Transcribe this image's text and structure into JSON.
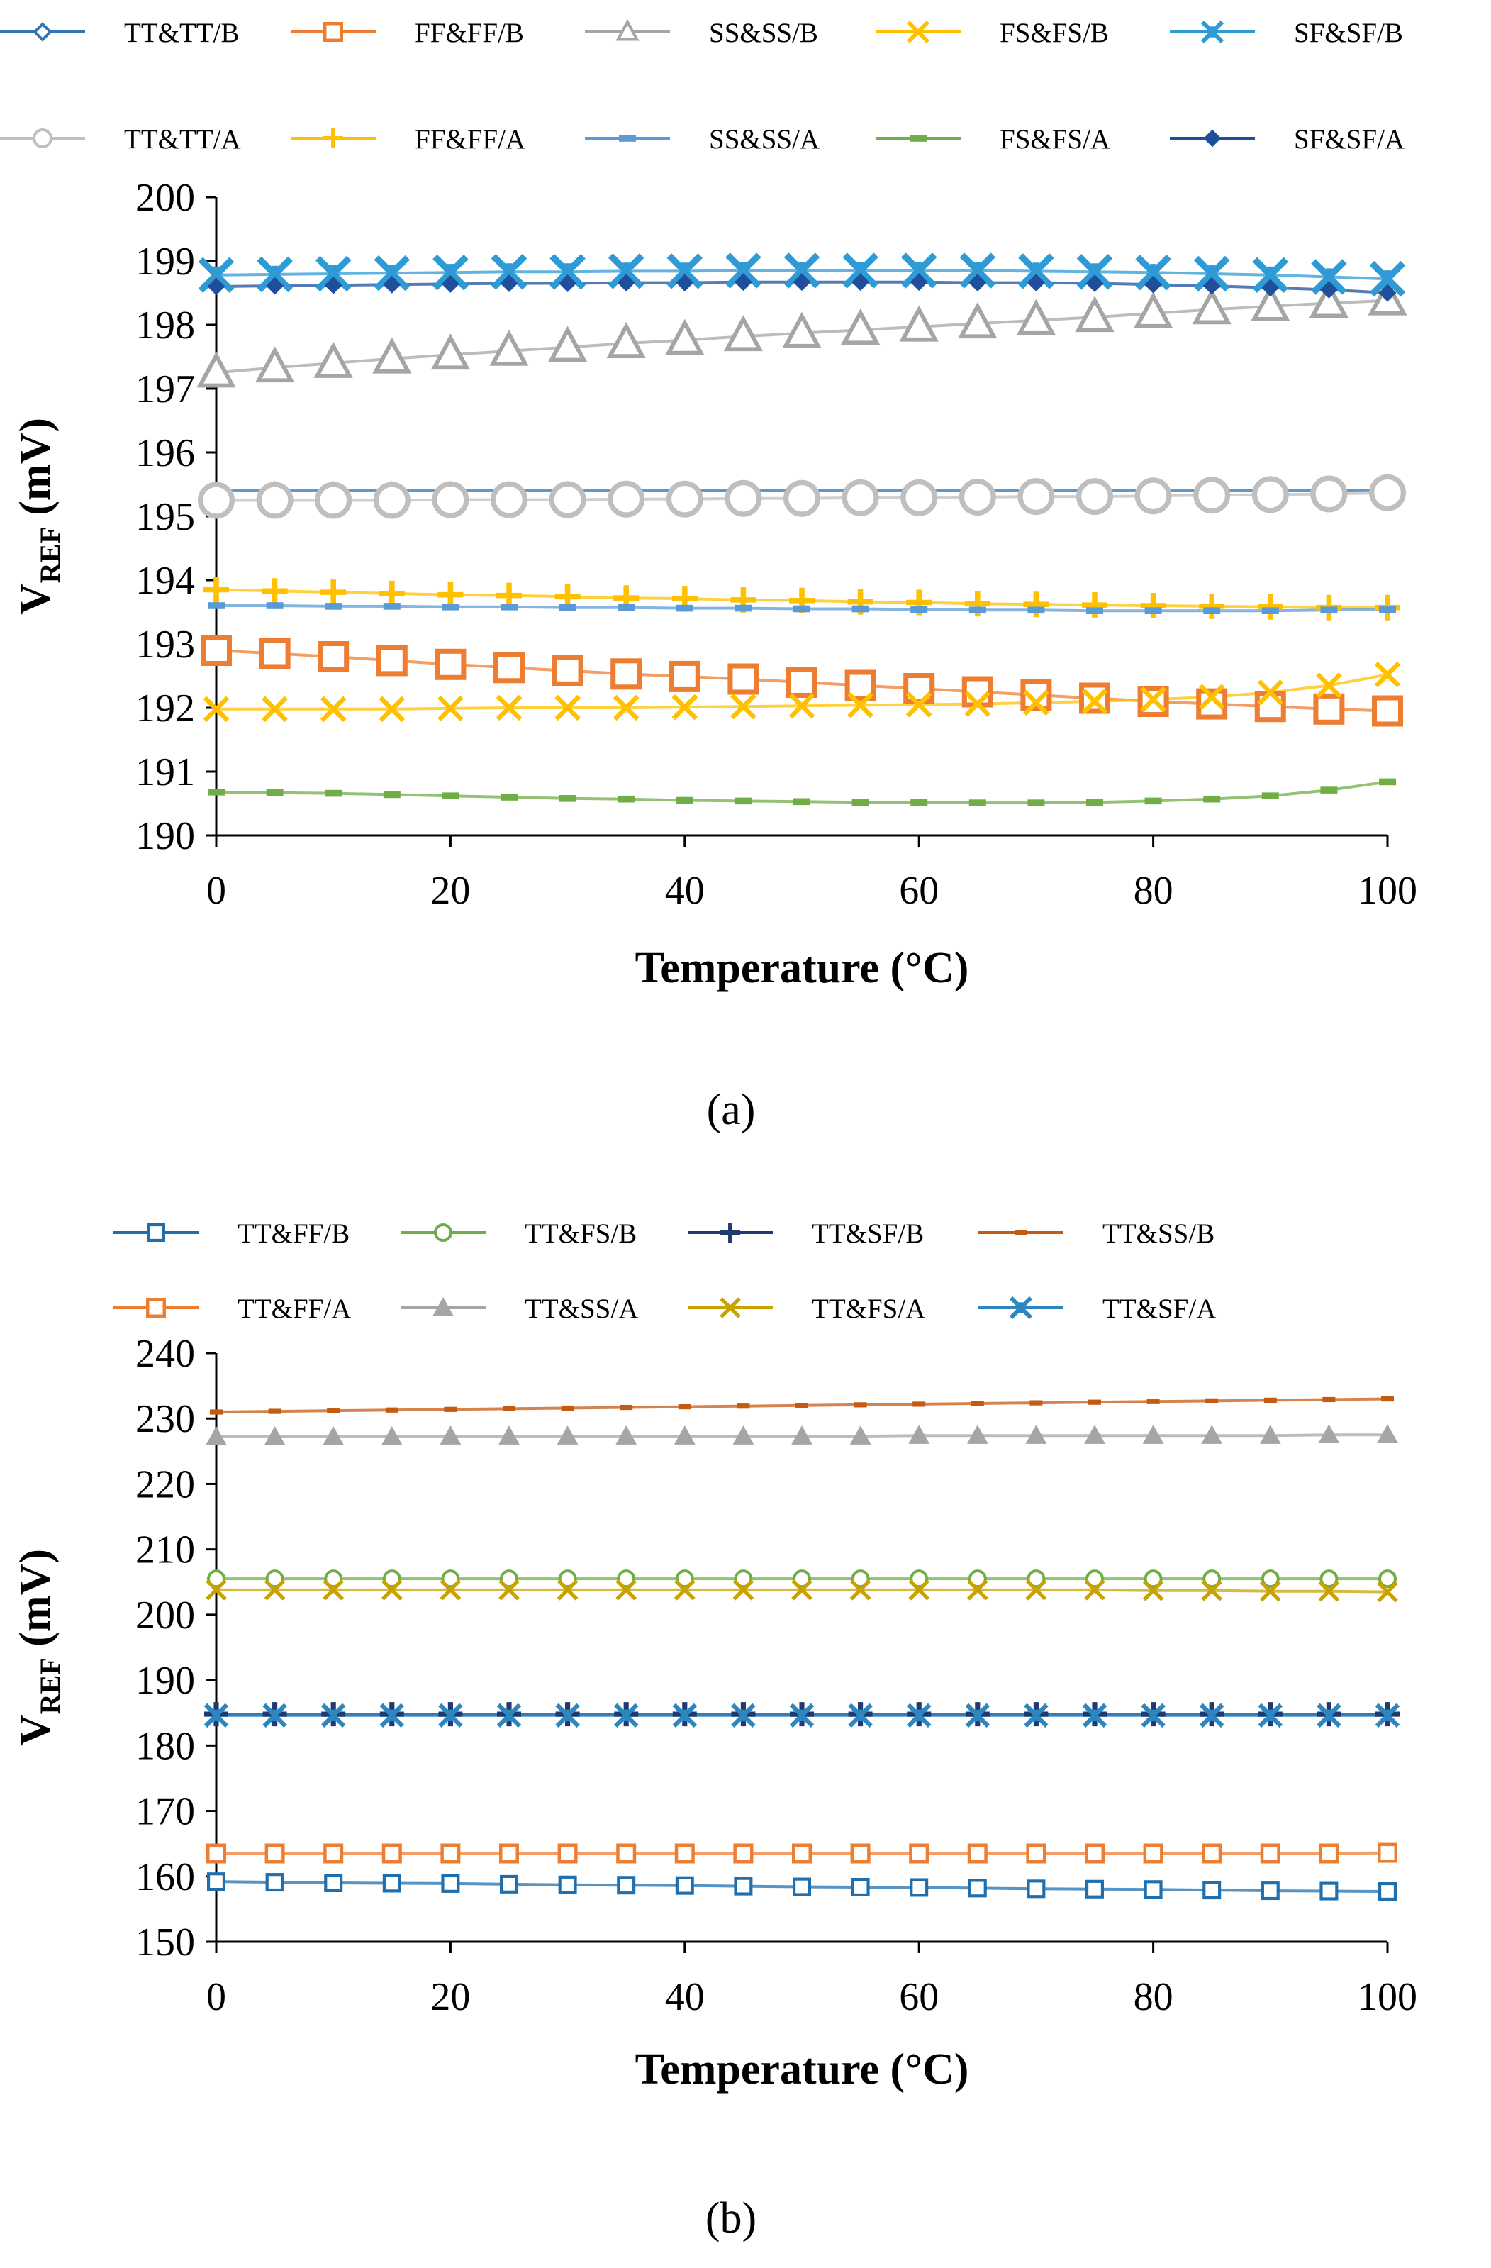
{
  "chart_data": [
    {
      "type": "line",
      "panel_label": "(a)",
      "xlabel": "Temperature (°C)",
      "ylabel_main": "V",
      "ylabel_sub": "REF",
      "ylabel_unit": " (mV)",
      "xlim": [
        0,
        100
      ],
      "ylim": [
        190,
        200
      ],
      "xticks": [
        "0",
        "20",
        "40",
        "60",
        "80",
        "100"
      ],
      "yticks": [
        "190",
        "191",
        "192",
        "193",
        "194",
        "195",
        "196",
        "197",
        "198",
        "199",
        "200"
      ],
      "legend_position": "top",
      "x": [
        0,
        5,
        10,
        15,
        20,
        25,
        30,
        35,
        40,
        45,
        50,
        55,
        60,
        65,
        70,
        75,
        80,
        85,
        90,
        95,
        100
      ],
      "series": [
        {
          "name": "TT&TT/B",
          "color": "#2E75B6",
          "marker": "diamond-open",
          "marker_size": 11,
          "values": [
            195.4,
            195.4,
            195.4,
            195.4,
            195.4,
            195.4,
            195.4,
            195.4,
            195.4,
            195.4,
            195.4,
            195.4,
            195.4,
            195.4,
            195.4,
            195.4,
            195.4,
            195.4,
            195.4,
            195.4,
            195.4
          ]
        },
        {
          "name": "FF&FF/B",
          "color": "#ED7D31",
          "marker": "square-open",
          "marker_size": 22,
          "values": [
            192.9,
            192.85,
            192.8,
            192.74,
            192.68,
            192.63,
            192.58,
            192.53,
            192.49,
            192.45,
            192.4,
            192.35,
            192.3,
            192.25,
            192.2,
            192.15,
            192.1,
            192.06,
            192.02,
            191.98,
            191.95
          ]
        },
        {
          "name": "SS&SS/B",
          "color": "#A5A5A5",
          "marker": "triangle-open",
          "marker_size": 24,
          "values": [
            197.25,
            197.33,
            197.4,
            197.47,
            197.53,
            197.59,
            197.65,
            197.71,
            197.76,
            197.82,
            197.87,
            197.92,
            197.97,
            198.02,
            198.07,
            198.12,
            198.18,
            198.24,
            198.29,
            198.34,
            198.38
          ]
        },
        {
          "name": "FS&FS/B",
          "color": "#FFC000",
          "marker": "x",
          "marker_size": 16,
          "values": [
            191.98,
            191.98,
            191.98,
            191.98,
            191.99,
            192.0,
            192.0,
            192.0,
            192.01,
            192.02,
            192.03,
            192.04,
            192.05,
            192.06,
            192.08,
            192.1,
            192.13,
            192.17,
            192.24,
            192.35,
            192.52
          ]
        },
        {
          "name": "SF&SF/B",
          "color": "#2E9BD6",
          "marker": "star-x",
          "marker_size": 22,
          "values": [
            198.78,
            198.79,
            198.8,
            198.81,
            198.82,
            198.83,
            198.83,
            198.84,
            198.84,
            198.85,
            198.85,
            198.85,
            198.85,
            198.85,
            198.84,
            198.83,
            198.82,
            198.8,
            198.78,
            198.75,
            198.72
          ]
        },
        {
          "name": "TT&TT/A",
          "color": "#BFBFBF",
          "marker": "circle-open",
          "marker_size": 26,
          "values": [
            195.25,
            195.25,
            195.25,
            195.25,
            195.26,
            195.26,
            195.26,
            195.27,
            195.27,
            195.28,
            195.28,
            195.29,
            195.29,
            195.3,
            195.31,
            195.31,
            195.32,
            195.33,
            195.34,
            195.35,
            195.37
          ]
        },
        {
          "name": "FF&FF/A",
          "color": "#FFC000",
          "marker": "plus",
          "marker_size": 18,
          "values": [
            193.85,
            193.83,
            193.81,
            193.79,
            193.77,
            193.76,
            193.74,
            193.72,
            193.71,
            193.69,
            193.68,
            193.66,
            193.65,
            193.63,
            193.62,
            193.61,
            193.6,
            193.59,
            193.58,
            193.57,
            193.57
          ]
        },
        {
          "name": "SS&SS/A",
          "color": "#5B9BD5",
          "marker": "dash",
          "marker_size": 12,
          "values": [
            193.6,
            193.6,
            193.59,
            193.59,
            193.58,
            193.58,
            193.57,
            193.57,
            193.56,
            193.56,
            193.55,
            193.55,
            193.54,
            193.53,
            193.53,
            193.52,
            193.52,
            193.52,
            193.52,
            193.53,
            193.54
          ]
        },
        {
          "name": "FS&FS/A",
          "color": "#70AD47",
          "marker": "dash",
          "marker_size": 12,
          "values": [
            190.68,
            190.67,
            190.66,
            190.64,
            190.62,
            190.6,
            190.58,
            190.57,
            190.55,
            190.54,
            190.53,
            190.52,
            190.52,
            190.51,
            190.51,
            190.52,
            190.54,
            190.57,
            190.62,
            190.71,
            190.84
          ]
        },
        {
          "name": "SF&SF/A",
          "color": "#1F4E9B",
          "marker": "diamond",
          "marker_size": 11,
          "values": [
            198.6,
            198.61,
            198.62,
            198.63,
            198.64,
            198.65,
            198.65,
            198.66,
            198.66,
            198.67,
            198.67,
            198.67,
            198.67,
            198.66,
            198.66,
            198.65,
            198.63,
            198.61,
            198.58,
            198.55,
            198.5
          ]
        }
      ]
    },
    {
      "type": "line",
      "panel_label": "(b)",
      "xlabel": "Temperature (°C)",
      "ylabel_main": "V",
      "ylabel_sub": "REF",
      "ylabel_unit": " (mV)",
      "xlim": [
        0,
        100
      ],
      "ylim": [
        150,
        240
      ],
      "xticks": [
        "0",
        "20",
        "40",
        "60",
        "80",
        "100"
      ],
      "yticks": [
        "150",
        "160",
        "170",
        "180",
        "190",
        "200",
        "210",
        "220",
        "230",
        "240"
      ],
      "legend_position": "top",
      "x": [
        0,
        5,
        10,
        15,
        20,
        25,
        30,
        35,
        40,
        45,
        50,
        55,
        60,
        65,
        70,
        75,
        80,
        85,
        90,
        95,
        100
      ],
      "series": [
        {
          "name": "TT&FF/B",
          "color": "#1F6FAF",
          "marker": "square-open",
          "marker_size": 13,
          "values": [
            159.2,
            159.1,
            159.0,
            158.95,
            158.9,
            158.8,
            158.7,
            158.65,
            158.6,
            158.5,
            158.4,
            158.35,
            158.3,
            158.2,
            158.1,
            158.05,
            158.0,
            157.9,
            157.8,
            157.75,
            157.7
          ]
        },
        {
          "name": "TT&FS/B",
          "color": "#70AD47",
          "marker": "circle-open",
          "marker_size": 13,
          "values": [
            205.5,
            205.5,
            205.5,
            205.5,
            205.5,
            205.5,
            205.5,
            205.5,
            205.5,
            205.5,
            205.5,
            205.5,
            205.5,
            205.5,
            205.5,
            205.5,
            205.5,
            205.5,
            205.5,
            205.5,
            205.5
          ]
        },
        {
          "name": "TT&SF/B",
          "color": "#1F3A6E",
          "marker": "plus",
          "marker_size": 17,
          "values": [
            184.8,
            184.8,
            184.8,
            184.8,
            184.8,
            184.8,
            184.8,
            184.8,
            184.8,
            184.8,
            184.8,
            184.8,
            184.8,
            184.8,
            184.8,
            184.8,
            184.8,
            184.8,
            184.8,
            184.8,
            184.8
          ]
        },
        {
          "name": "TT&SS/B",
          "color": "#C55A11",
          "marker": "dash",
          "marker_size": 9,
          "values": [
            231.0,
            231.1,
            231.2,
            231.3,
            231.4,
            231.5,
            231.6,
            231.7,
            231.8,
            231.9,
            232.0,
            232.1,
            232.2,
            232.3,
            232.4,
            232.5,
            232.6,
            232.7,
            232.8,
            232.9,
            233.0
          ]
        },
        {
          "name": "TT&FF/A",
          "color": "#ED7D31",
          "marker": "square-open",
          "marker_size": 14,
          "values": [
            163.5,
            163.5,
            163.5,
            163.5,
            163.5,
            163.5,
            163.5,
            163.5,
            163.5,
            163.5,
            163.5,
            163.5,
            163.5,
            163.5,
            163.5,
            163.5,
            163.5,
            163.5,
            163.5,
            163.5,
            163.6
          ]
        },
        {
          "name": "TT&SS/A",
          "color": "#A5A5A5",
          "marker": "triangle",
          "marker_size": 14,
          "values": [
            227.2,
            227.2,
            227.2,
            227.2,
            227.3,
            227.3,
            227.3,
            227.3,
            227.3,
            227.3,
            227.3,
            227.3,
            227.4,
            227.4,
            227.4,
            227.4,
            227.4,
            227.4,
            227.4,
            227.5,
            227.5
          ]
        },
        {
          "name": "TT&FS/A",
          "color": "#C9A200",
          "marker": "x",
          "marker_size": 13,
          "values": [
            203.8,
            203.8,
            203.8,
            203.8,
            203.8,
            203.8,
            203.8,
            203.8,
            203.8,
            203.8,
            203.8,
            203.8,
            203.8,
            203.8,
            203.8,
            203.8,
            203.7,
            203.7,
            203.6,
            203.6,
            203.5
          ]
        },
        {
          "name": "TT&SF/A",
          "color": "#2E86C1",
          "marker": "star-x",
          "marker_size": 15,
          "values": [
            184.6,
            184.6,
            184.6,
            184.6,
            184.6,
            184.6,
            184.6,
            184.6,
            184.6,
            184.6,
            184.6,
            184.6,
            184.6,
            184.6,
            184.6,
            184.6,
            184.6,
            184.6,
            184.6,
            184.6,
            184.6
          ]
        }
      ]
    }
  ]
}
